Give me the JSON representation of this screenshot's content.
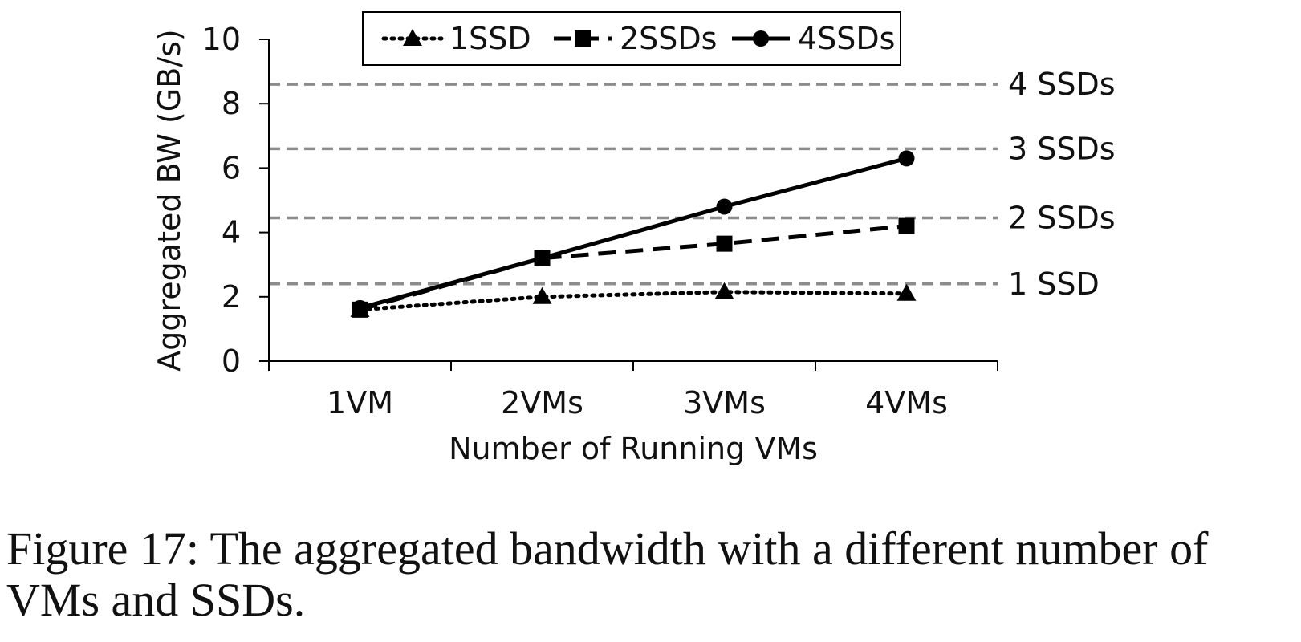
{
  "chart_data": {
    "type": "line",
    "categories": [
      "1VM",
      "2VMs",
      "3VMs",
      "4VMs"
    ],
    "xlabel": "Number of Running VMs",
    "ylabel": "Aggregated BW (GB/s)",
    "ylim": [
      0,
      10
    ],
    "yticks": [
      0,
      2,
      4,
      6,
      8,
      10
    ],
    "grid": false,
    "legend": "top-center",
    "series": [
      {
        "name": "1SSD",
        "marker": "triangle",
        "dash": "dotted",
        "values": [
          1.6,
          2.0,
          2.15,
          2.1
        ]
      },
      {
        "name": "2SSDs",
        "marker": "square",
        "dash": "dashed",
        "values": [
          1.6,
          3.2,
          3.65,
          4.2
        ]
      },
      {
        "name": "4SSDs",
        "marker": "circle",
        "dash": "solid",
        "values": [
          1.65,
          3.2,
          4.8,
          6.3
        ]
      }
    ],
    "reference_lines": [
      {
        "label": "4 SSDs",
        "value": 8.6
      },
      {
        "label": "3 SSDs",
        "value": 6.6
      },
      {
        "label": "2 SSDs",
        "value": 4.45
      },
      {
        "label": "1 SSD",
        "value": 2.4
      }
    ]
  },
  "caption": "Figure 17: The aggregated bandwidth with a different number of VMs and SSDs."
}
